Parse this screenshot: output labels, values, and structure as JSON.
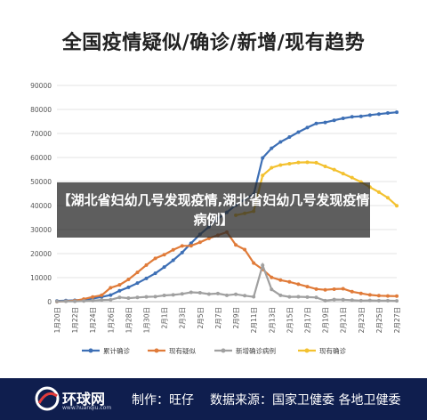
{
  "title": "全国疫情疑似/确诊/新增/现有趋势",
  "overlay_text": "【湖北省妇幼几号发现疫情,湖北省妇幼几号发现疫情病例】",
  "footer": {
    "logo_name": "环球网",
    "logo_url": "www.huanqiu.com",
    "credit": "制作：旺仔",
    "source": "数据来源：国家卫健委 各地卫健委"
  },
  "chart_data": {
    "type": "line",
    "title": "全国疫情疑似/确诊/新增/现有趋势",
    "xlabel": "",
    "ylabel": "",
    "ylim": [
      0,
      90000
    ],
    "yticks": [
      0,
      10000,
      20000,
      30000,
      40000,
      50000,
      60000,
      70000,
      80000,
      90000
    ],
    "x_tick_labels": [
      "1月20日",
      "1月22日",
      "1月24日",
      "1月26日",
      "1月28日",
      "1月30日",
      "2月1日",
      "2月3日",
      "2月5日",
      "2月7日",
      "2月9日",
      "2月11日",
      "2月13日",
      "2月15日",
      "2月17日",
      "2月19日",
      "2月21日",
      "2月23日",
      "2月25日",
      "2月27日"
    ],
    "x": [
      "1月20日",
      "1月21日",
      "1月22日",
      "1月23日",
      "1月24日",
      "1月25日",
      "1月26日",
      "1月27日",
      "1月28日",
      "1月29日",
      "1月30日",
      "1月31日",
      "2月1日",
      "2月2日",
      "2月3日",
      "2月4日",
      "2月5日",
      "2月6日",
      "2月7日",
      "2月8日",
      "2月9日",
      "2月10日",
      "2月11日",
      "2月12日",
      "2月13日",
      "2月14日",
      "2月15日",
      "2月16日",
      "2月17日",
      "2月18日",
      "2月19日",
      "2月20日",
      "2月21日",
      "2月22日",
      "2月23日",
      "2月24日",
      "2月25日",
      "2月26日",
      "2月27日"
    ],
    "grid": true,
    "legend_position": "bottom",
    "series": [
      {
        "name": "累计确诊",
        "color": "#3d6fb5",
        "values": [
          291,
          440,
          571,
          830,
          1287,
          1975,
          2744,
          4515,
          5974,
          7711,
          9692,
          11791,
          14380,
          17205,
          20438,
          24324,
          28018,
          31161,
          34546,
          37198,
          40171,
          42638,
          44653,
          59804,
          63851,
          66492,
          68500,
          70548,
          72436,
          74185,
          74576,
          75465,
          76288,
          76936,
          77150,
          77658,
          78064,
          78497,
          78824
        ]
      },
      {
        "name": "现有疑似",
        "color": "#e07b39",
        "values": [
          54,
          200,
          393,
          1072,
          1965,
          2684,
          5794,
          6973,
          9239,
          12167,
          15238,
          17988,
          19544,
          21558,
          23214,
          23260,
          24702,
          26359,
          27657,
          28942,
          23589,
          21675,
          16067,
          13435,
          10109,
          8969,
          8228,
          7264,
          6242,
          5248,
          4922,
          5206,
          5365,
          4148,
          3434,
          2824,
          2491,
          2358,
          2308
        ]
      },
      {
        "name": "新增确诊病例",
        "color": "#a0a0a0",
        "values": [
          77,
          149,
          131,
          259,
          444,
          688,
          769,
          1771,
          1459,
          1737,
          1982,
          2102,
          2590,
          2829,
          3235,
          3887,
          3694,
          3143,
          3385,
          2652,
          3073,
          2478,
          2015,
          15152,
          5090,
          2641,
          2009,
          2048,
          1886,
          1749,
          394,
          889,
          823,
          648,
          409,
          508,
          406,
          433,
          327
        ]
      },
      {
        "name": "现有确诊",
        "color": "#f3c12f",
        "values": [
          null,
          null,
          null,
          null,
          null,
          null,
          null,
          null,
          null,
          null,
          null,
          null,
          null,
          null,
          null,
          null,
          null,
          null,
          null,
          null,
          35982,
          36740,
          37626,
          52526,
          55748,
          56873,
          57416,
          57934,
          58016,
          57805,
          56303,
          54965,
          53284,
          51606,
          49824,
          47672,
          45604,
          43258,
          39919
        ]
      }
    ]
  }
}
